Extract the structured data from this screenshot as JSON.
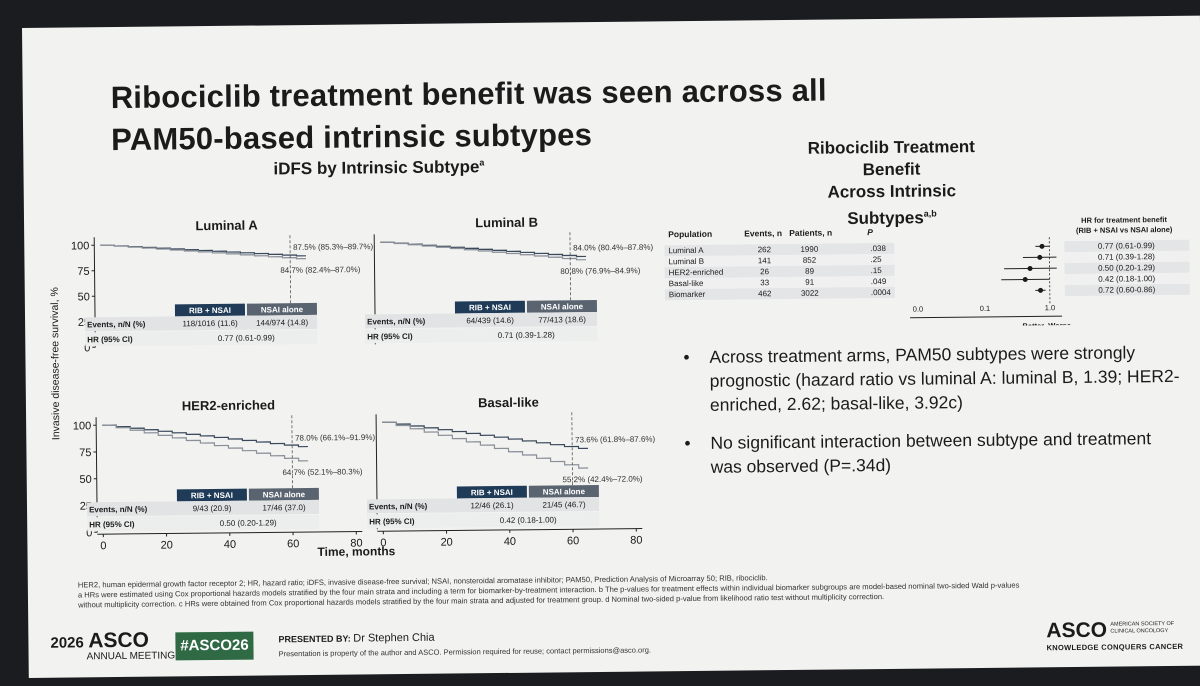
{
  "slide": {
    "title_line1": "Ribociclib treatment benefit was seen across all",
    "title_line2": "PAM50-based intrinsic subtypes",
    "left_section_title": "iDFS by Intrinsic Subtype",
    "left_section_title_sup": "a",
    "y_axis_label": "Invasive disease-free survival, %",
    "x_axis_label": "Time, months",
    "right_section_title_line1": "Ribociclib Treatment Benefit",
    "right_section_title_line2": "Across Intrinsic Subtypes",
    "right_section_title_sup": "a,b"
  },
  "km_panels": [
    {
      "name": "Luminal A",
      "upper_label": "87.5% (85.3%–89.7%)",
      "lower_label": "84.7% (82.4%–87.0%)",
      "arm1": "RIB + NSAI",
      "arm2": "NSAI alone",
      "events_label": "Events, n/N (%)",
      "events_arm1": "118/1016 (11.6)",
      "events_arm2": "144/974 (14.8)",
      "hr_label": "HR (95% CI)",
      "hr_value": "0.77 (0.61-0.99)",
      "y_ticks": [
        "100",
        "75",
        "50",
        "25",
        "0"
      ],
      "x_ticks": [],
      "upper_y": 87.5,
      "lower_y": 84.7
    },
    {
      "name": "Luminal B",
      "upper_label": "84.0% (80.4%–87.8%)",
      "lower_label": "80.8% (76.9%–84.9%)",
      "arm1": "RIB + NSAI",
      "arm2": "NSAI alone",
      "events_label": "Events, n/N (%)",
      "events_arm1": "64/439 (14.6)",
      "events_arm2": "77/413 (18.6)",
      "hr_label": "HR (95% CI)",
      "hr_value": "0.71 (0.39-1.28)",
      "y_ticks": [],
      "x_ticks": [],
      "upper_y": 84.0,
      "lower_y": 80.8
    },
    {
      "name": "HER2-enriched",
      "upper_label": "78.0% (66.1%–91.9%)",
      "lower_label": "64.7% (52.1%–80.3%)",
      "arm1": "RIB + NSAI",
      "arm2": "NSAI alone",
      "events_label": "Events, n/N (%)",
      "events_arm1": "9/43 (20.9)",
      "events_arm2": "17/46 (37.0)",
      "hr_label": "HR (95% CI)",
      "hr_value": "0.50 (0.20-1.29)",
      "y_ticks": [
        "100",
        "75",
        "50",
        "25",
        "0"
      ],
      "x_ticks": [
        "0",
        "20",
        "40",
        "60",
        "80"
      ],
      "upper_y": 78.0,
      "lower_y": 64.7
    },
    {
      "name": "Basal-like",
      "upper_label": "73.6% (61.8%–87.6%)",
      "lower_label": "55.2% (42.4%–72.0%)",
      "arm1": "RIB + NSAI",
      "arm2": "NSAI alone",
      "events_label": "Events, n/N (%)",
      "events_arm1": "12/46 (26.1)",
      "events_arm2": "21/45 (46.7)",
      "hr_label": "HR (95% CI)",
      "hr_value": "0.42 (0.18-1.00)",
      "y_ticks": [],
      "x_ticks": [
        "0",
        "20",
        "40",
        "60",
        "80"
      ],
      "upper_y": 73.6,
      "lower_y": 55.2
    }
  ],
  "forest": {
    "headers": {
      "population": "Population",
      "events": "Events, n",
      "patients": "Patients, n",
      "p": "P",
      "hr_line1": "HR for treatment benefit",
      "hr_line2": "(RIB + NSAI vs NSAI alone)"
    },
    "rows": [
      {
        "population": "Luminal A",
        "events": "262",
        "patients": "1990",
        "p": ".038",
        "hr": "0.77 (0.61-0.99)",
        "est": 0.77,
        "lo": 0.61,
        "hi": 0.99
      },
      {
        "population": "Luminal B",
        "events": "141",
        "patients": "852",
        "p": ".25",
        "hr": "0.71 (0.39-1.28)",
        "est": 0.71,
        "lo": 0.39,
        "hi": 1.28
      },
      {
        "population": "HER2-enriched",
        "events": "26",
        "patients": "89",
        "p": ".15",
        "hr": "0.50 (0.20-1.29)",
        "est": 0.5,
        "lo": 0.2,
        "hi": 1.29
      },
      {
        "population": "Basal-like",
        "events": "33",
        "patients": "91",
        "p": ".049",
        "hr": "0.42 (0.18-1.00)",
        "est": 0.42,
        "lo": 0.18,
        "hi": 1.0
      },
      {
        "population": "Biomarker",
        "events": "462",
        "patients": "3022",
        "p": ".0004",
        "hr": "0.72 (0.60-0.86)",
        "est": 0.72,
        "lo": 0.6,
        "hi": 0.86
      }
    ],
    "axis_ticks": [
      "0.0",
      "0.1",
      "1.0"
    ],
    "better_label": "Better",
    "worse_label": "Worse"
  },
  "bullets": [
    "Across treatment arms, PAM50 subtypes were strongly prognostic (hazard ratio vs luminal A: luminal B, 1.39; HER2-enriched, 2.62; basal-like, 3.92c)",
    "No significant interaction between subtype and treatment was observed (P=.34d)"
  ],
  "footnotes": [
    "HER2, human epidermal growth factor receptor 2; HR, hazard ratio; iDFS, invasive disease-free survival; NSAI, nonsteroidal aromatase inhibitor; PAM50, Prediction Analysis of Microarray 50; RIB, ribociclib.",
    "a HRs were estimated using Cox proportional hazards models stratified by the four main strata and including a term for biomarker-by-treatment interaction. b The p-values for treatment effects within individual biomarker subgroups are model-based nominal two-sided Wald p-values",
    "without multiplicity correction. c HRs were obtained from Cox proportional hazards models stratified by the four main strata and adjusted for treatment group. d Nominal two-sided p-value from likelihood ratio test without multiplicity correction."
  ],
  "footer": {
    "year": "2026",
    "asco": "ASCO",
    "annual_meeting": "ANNUAL MEETING",
    "hashtag": "#ASCO26",
    "presented_by_label": "PRESENTED BY:",
    "presenter": "Dr Stephen Chia",
    "disclaimer": "Presentation is property of the author and ASCO. Permission required for reuse; contact permissions@asco.org.",
    "asco_right": "ASCO",
    "society_line1": "AMERICAN SOCIETY OF",
    "society_line2": "CLINICAL ONCOLOGY",
    "tagline": "KNOWLEDGE CONQUERS CANCER"
  },
  "colors": {
    "slide_bg": "#f2f2f0",
    "navy": "#1f3b57",
    "gray_header": "#5a6470",
    "hashtag_green": "#2f6a45",
    "text": "#1b1b1b"
  }
}
